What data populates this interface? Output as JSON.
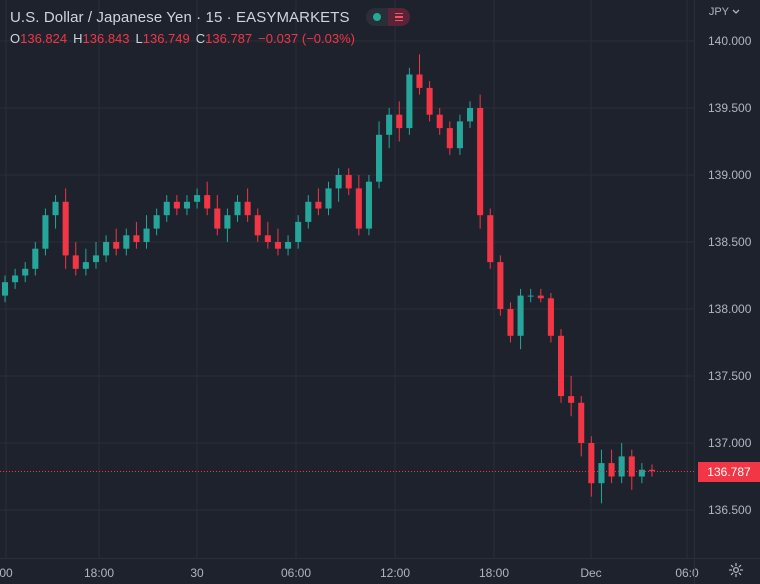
{
  "header": {
    "title": "U.S. Dollar / Japanese Yen · 15 · EASYMARKETS",
    "ohlc": [
      {
        "key": "O",
        "value": "136.824"
      },
      {
        "key": "H",
        "value": "136.843"
      },
      {
        "key": "L",
        "value": "136.749"
      },
      {
        "key": "C",
        "value": "136.787"
      },
      {
        "key": "",
        "value": "−0.037 (−0.03%)"
      }
    ],
    "currency": "JPY"
  },
  "price_label": "136.787",
  "colors": {
    "background": "#1e222d",
    "grid": "#2a2e39",
    "up": "#26a69a",
    "down": "#f23645",
    "text": "#d1d4dc"
  },
  "chart_data": {
    "type": "candlestick",
    "ylim": [
      136.1,
      140.3
    ],
    "y_ticks": [
      "140.000",
      "139.500",
      "139.000",
      "138.500",
      "138.000",
      "137.500",
      "137.000",
      "136.500"
    ],
    "x_ticks": [
      "00",
      "18:00",
      "30",
      "06:00",
      "12:00",
      "18:00",
      "Dec",
      "06:0"
    ],
    "last_price": 136.787,
    "candles": [
      [
        138.1,
        138.25,
        138.05,
        138.2
      ],
      [
        138.2,
        138.3,
        138.15,
        138.25
      ],
      [
        138.25,
        138.35,
        138.2,
        138.3
      ],
      [
        138.3,
        138.5,
        138.25,
        138.45
      ],
      [
        138.45,
        138.75,
        138.4,
        138.7
      ],
      [
        138.7,
        138.85,
        138.6,
        138.8
      ],
      [
        138.8,
        138.9,
        138.3,
        138.4
      ],
      [
        138.4,
        138.5,
        138.25,
        138.3
      ],
      [
        138.3,
        138.45,
        138.25,
        138.35
      ],
      [
        138.35,
        138.5,
        138.3,
        138.4
      ],
      [
        138.4,
        138.55,
        138.35,
        138.5
      ],
      [
        138.5,
        138.6,
        138.4,
        138.45
      ],
      [
        138.45,
        138.6,
        138.4,
        138.55
      ],
      [
        138.55,
        138.65,
        138.45,
        138.5
      ],
      [
        138.5,
        138.7,
        138.45,
        138.6
      ],
      [
        138.6,
        138.75,
        138.55,
        138.7
      ],
      [
        138.7,
        138.85,
        138.65,
        138.8
      ],
      [
        138.8,
        138.85,
        138.7,
        138.75
      ],
      [
        138.75,
        138.85,
        138.7,
        138.8
      ],
      [
        138.8,
        138.9,
        138.75,
        138.85
      ],
      [
        138.85,
        138.95,
        138.7,
        138.75
      ],
      [
        138.75,
        138.85,
        138.55,
        138.6
      ],
      [
        138.6,
        138.75,
        138.5,
        138.7
      ],
      [
        138.7,
        138.85,
        138.65,
        138.8
      ],
      [
        138.8,
        138.9,
        138.65,
        138.7
      ],
      [
        138.7,
        138.75,
        138.5,
        138.55
      ],
      [
        138.55,
        138.65,
        138.45,
        138.5
      ],
      [
        138.5,
        138.6,
        138.4,
        138.45
      ],
      [
        138.45,
        138.55,
        138.4,
        138.5
      ],
      [
        138.5,
        138.7,
        138.45,
        138.65
      ],
      [
        138.65,
        138.85,
        138.6,
        138.8
      ],
      [
        138.8,
        138.9,
        138.7,
        138.75
      ],
      [
        138.75,
        138.95,
        138.7,
        138.9
      ],
      [
        138.9,
        139.05,
        138.8,
        139.0
      ],
      [
        139.0,
        139.05,
        138.85,
        138.9
      ],
      [
        138.9,
        139.0,
        138.55,
        138.6
      ],
      [
        138.6,
        139.0,
        138.55,
        138.95
      ],
      [
        138.95,
        139.4,
        138.9,
        139.3
      ],
      [
        139.3,
        139.5,
        139.2,
        139.45
      ],
      [
        139.45,
        139.55,
        139.25,
        139.35
      ],
      [
        139.35,
        139.8,
        139.3,
        139.75
      ],
      [
        139.75,
        139.9,
        139.6,
        139.65
      ],
      [
        139.65,
        139.7,
        139.4,
        139.45
      ],
      [
        139.45,
        139.5,
        139.3,
        139.35
      ],
      [
        139.35,
        139.4,
        139.15,
        139.2
      ],
      [
        139.2,
        139.45,
        139.15,
        139.4
      ],
      [
        139.4,
        139.55,
        139.35,
        139.5
      ],
      [
        139.5,
        139.6,
        138.6,
        138.7
      ],
      [
        138.7,
        138.75,
        138.3,
        138.35
      ],
      [
        138.35,
        138.4,
        137.95,
        138.0
      ],
      [
        138.0,
        138.05,
        137.75,
        137.8
      ],
      [
        137.8,
        138.15,
        137.7,
        138.1
      ],
      [
        138.1,
        138.15,
        138.05,
        138.1
      ],
      [
        138.1,
        138.15,
        138.05,
        138.08
      ],
      [
        138.08,
        138.12,
        137.75,
        137.8
      ],
      [
        137.8,
        137.85,
        137.3,
        137.35
      ],
      [
        137.35,
        137.5,
        137.2,
        137.3
      ],
      [
        137.3,
        137.35,
        136.9,
        137.0
      ],
      [
        137.0,
        137.05,
        136.6,
        136.7
      ],
      [
        136.7,
        136.95,
        136.55,
        136.85
      ],
      [
        136.85,
        136.95,
        136.7,
        136.75
      ],
      [
        136.75,
        137.0,
        136.7,
        136.9
      ],
      [
        136.9,
        136.95,
        136.65,
        136.75
      ],
      [
        136.75,
        136.85,
        136.7,
        136.8
      ],
      [
        136.8,
        136.84,
        136.75,
        136.79
      ]
    ]
  }
}
